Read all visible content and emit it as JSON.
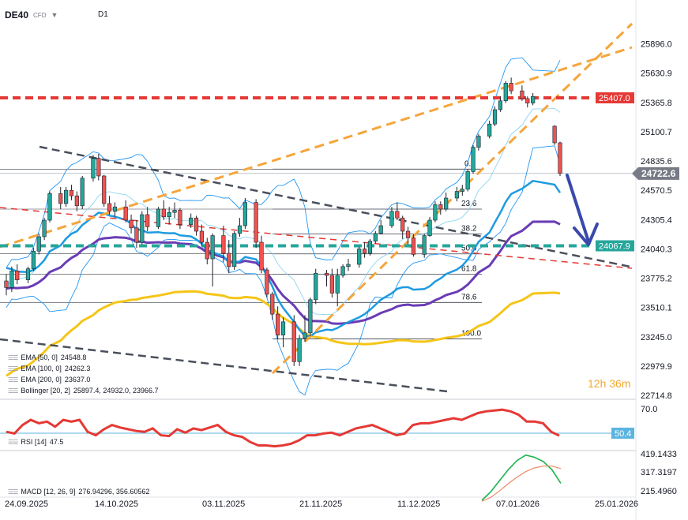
{
  "header": {
    "symbol": "DE40",
    "symbol_type": "CFD",
    "timeframe": "D1"
  },
  "colors": {
    "up": "#26a69a",
    "down": "#ef5350",
    "resistance": "#e53935",
    "support": "#26a69a",
    "ema50": "#1e9be0",
    "ema100": "#6a3cb5",
    "ema200": "#f5c518",
    "bollinger": "#2196f3",
    "orange_lines": "#f5a53b",
    "gray_dashed": "#4a4f5c",
    "forecast_arrow": "#3949ab",
    "rsi": "#e53935",
    "macd": "#1bb34a",
    "macd_signal": "#f08a6b"
  },
  "icons": [
    "chevron-down-icon",
    "indicator-settings-icon",
    "forecast-arrow-icon"
  ],
  "countdown": "12h 36m",
  "indicators": [
    {
      "name": "EMA [50, 0]",
      "value": "24548.8"
    },
    {
      "name": "EMA [100, 0]",
      "value": "24262.3"
    },
    {
      "name": "EMA [200, 0]",
      "value": "23637.0"
    },
    {
      "name": "Bollinger [20, 2]",
      "value": "25897.4, 24932.0, 23966.7"
    }
  ],
  "rsi_legend": {
    "name": "RSI [14]",
    "value": "47.5"
  },
  "macd_legend": {
    "name": "MACD [12, 26, 9]",
    "value": "276.94296, 356.60562"
  },
  "chart_data": [
    {
      "type": "candlestick",
      "title": "DE40",
      "x_dates": [
        "24.09.2025",
        "14.10.2025",
        "03.11.2025",
        "21.11.2025",
        "11.12.2025",
        "07.01.2026",
        "25.01.2026"
      ],
      "y_ticks": [
        "25896.0",
        "25630.9",
        "25365.8",
        "25100.7",
        "24835.6",
        "24570.5",
        "24305.4",
        "24040.3",
        "23775.2",
        "23510.1",
        "23245.0",
        "22979.9",
        "22714.8"
      ],
      "ylim": [
        22714.8,
        26100
      ],
      "price_tags": [
        {
          "label": "25407.0",
          "value": 25407.0,
          "role": "resistance"
        },
        {
          "label": "24722.6",
          "value": 24722.6,
          "role": "last"
        },
        {
          "label": "24067.9",
          "value": 24067.9,
          "role": "support"
        }
      ],
      "fibonacci": [
        {
          "level": "0.0",
          "value": 24762
        },
        {
          "level": "23.6",
          "value": 24400
        },
        {
          "level": "38.2",
          "value": 24175
        },
        {
          "level": "50.0",
          "value": 23995
        },
        {
          "level": "61.8",
          "value": 23812
        },
        {
          "level": "78.6",
          "value": 23555
        },
        {
          "level": "100.0",
          "value": 23225
        }
      ],
      "candles": [
        [
          23750,
          23810,
          23620,
          23690
        ],
        [
          23690,
          23880,
          23650,
          23840
        ],
        [
          23840,
          23900,
          23720,
          23760
        ],
        [
          23760,
          23880,
          23730,
          23860
        ],
        [
          23860,
          24050,
          23840,
          24020
        ],
        [
          24020,
          24180,
          23990,
          24150
        ],
        [
          24150,
          24320,
          24120,
          24300
        ],
        [
          24300,
          24560,
          24280,
          24540
        ],
        [
          24540,
          24600,
          24400,
          24450
        ],
        [
          24450,
          24600,
          24420,
          24570
        ],
        [
          24570,
          24620,
          24480,
          24520
        ],
        [
          24520,
          24560,
          24380,
          24430
        ],
        [
          24430,
          24700,
          24400,
          24680
        ],
        [
          24680,
          24890,
          24650,
          24860
        ],
        [
          24860,
          24900,
          24660,
          24700
        ],
        [
          24700,
          24710,
          24420,
          24450
        ],
        [
          24450,
          24520,
          24350,
          24380
        ],
        [
          24380,
          24460,
          24330,
          24420
        ],
        [
          24420,
          24480,
          24280,
          24300
        ],
        [
          24300,
          24350,
          24180,
          24230
        ],
        [
          24230,
          24300,
          24050,
          24100
        ],
        [
          24100,
          24380,
          24080,
          24350
        ],
        [
          24350,
          24420,
          24200,
          24240
        ],
        [
          24240,
          24420,
          24220,
          24400
        ],
        [
          24400,
          24480,
          24300,
          24330
        ],
        [
          24330,
          24420,
          24260,
          24370
        ],
        [
          24370,
          24460,
          24320,
          24390
        ],
        [
          24390,
          24410,
          24220,
          24260
        ],
        [
          24260,
          24360,
          24230,
          24320
        ],
        [
          24320,
          24340,
          24160,
          24200
        ],
        [
          24200,
          24260,
          24060,
          24100
        ],
        [
          24100,
          24140,
          23900,
          23950
        ],
        [
          23950,
          24180,
          23700,
          24160
        ],
        [
          24160,
          24250,
          23920,
          24000
        ],
        [
          24000,
          24120,
          23820,
          23880
        ],
        [
          23880,
          24200,
          23850,
          24180
        ],
        [
          24180,
          24320,
          24150,
          24250
        ],
        [
          24250,
          24500,
          24220,
          24460
        ],
        [
          24460,
          24490,
          24050,
          24100
        ],
        [
          24100,
          24160,
          23820,
          23850
        ],
        [
          23850,
          23870,
          23600,
          23630
        ],
        [
          23630,
          23650,
          23400,
          23450
        ],
        [
          23450,
          23520,
          23220,
          23260
        ],
        [
          23260,
          23420,
          23150,
          23380
        ],
        [
          23380,
          23440,
          22980,
          23020
        ],
        [
          23020,
          23260,
          22980,
          23230
        ],
        [
          23230,
          23440,
          23200,
          23280
        ],
        [
          23280,
          23600,
          23250,
          23580
        ],
        [
          23580,
          23860,
          23540,
          23820
        ],
        [
          23820,
          23850,
          23700,
          23800
        ],
        [
          23800,
          23860,
          23600,
          23640
        ],
        [
          23640,
          23860,
          23520,
          23800
        ],
        [
          23800,
          23900,
          23780,
          23880
        ],
        [
          23880,
          23950,
          23840,
          23900
        ],
        [
          23900,
          24060,
          23870,
          24040
        ],
        [
          24040,
          24100,
          23960,
          24000
        ],
        [
          24000,
          24130,
          23980,
          24110
        ],
        [
          24110,
          24200,
          24090,
          24180
        ],
        [
          24180,
          24300,
          24170,
          24250
        ],
        [
          24250,
          24420,
          24230,
          24380
        ],
        [
          24380,
          24460,
          24300,
          24320
        ],
        [
          24320,
          24340,
          24130,
          24200
        ],
        [
          24200,
          24240,
          24080,
          24140
        ],
        [
          24140,
          24170,
          23970,
          23990
        ],
        [
          23990,
          24180,
          23960,
          24160
        ],
        [
          24160,
          24330,
          24150,
          24300
        ],
        [
          24300,
          24470,
          24280,
          24440
        ],
        [
          24440,
          24470,
          24350,
          24400
        ],
        [
          24400,
          24550,
          24380,
          24500
        ],
        [
          24500,
          24600,
          24470,
          24560
        ],
        [
          24560,
          24620,
          24520,
          24580
        ],
        [
          24580,
          24760,
          24560,
          24740
        ],
        [
          24740,
          24980,
          24720,
          24960
        ],
        [
          24960,
          25080,
          24930,
          25060
        ],
        [
          25060,
          25200,
          25040,
          25170
        ],
        [
          25170,
          25330,
          25150,
          25300
        ],
        [
          25300,
          25420,
          25280,
          25380
        ],
        [
          25380,
          25560,
          25360,
          25540
        ],
        [
          25540,
          25590,
          25440,
          25470
        ],
        [
          25470,
          25520,
          25380,
          25400
        ],
        [
          25400,
          25420,
          25320,
          25360
        ],
        [
          25360,
          25450,
          25340,
          25420
        ],
        [
          25150,
          25160,
          24980,
          25000
        ],
        [
          25000,
          25010,
          24700,
          24722.6
        ]
      ],
      "series": [
        {
          "name": "EMA [50, 0]",
          "last": 24548.8,
          "start": 23900
        },
        {
          "name": "EMA [100, 0]",
          "last": 24262.3,
          "start": 23680
        },
        {
          "name": "EMA [200, 0]",
          "last": 23637.0,
          "start": 22850
        }
      ]
    },
    {
      "type": "line",
      "title": "RSI [14]",
      "level": "50.4",
      "y_ticks": [
        "70.0"
      ],
      "values": [
        52,
        50,
        60,
        66,
        62,
        64,
        58,
        66,
        64,
        66,
        52,
        48,
        55,
        60,
        57,
        55,
        53,
        52,
        56,
        48,
        47,
        55,
        51,
        56,
        54,
        57,
        60,
        52,
        48,
        46,
        40,
        36,
        36,
        35,
        36,
        38,
        42,
        48,
        48,
        50,
        51,
        48,
        52,
        56,
        58,
        60,
        56,
        52,
        48,
        50,
        60,
        62,
        62,
        64,
        66,
        68,
        66,
        70,
        74,
        76,
        77,
        78,
        76,
        72,
        64,
        64,
        62,
        52,
        47.5
      ]
    },
    {
      "type": "line",
      "title": "MACD [12, 26, 9]",
      "y_ticks": [
        "419.1433",
        "317.3197",
        "215.4960"
      ],
      "series": [
        {
          "name": "MACD",
          "values": [
            185,
            230,
            290,
            350,
            400,
            430,
            418,
            395,
            350,
            276.9
          ]
        },
        {
          "name": "Signal",
          "values": [
            180,
            200,
            235,
            275,
            310,
            340,
            360,
            370,
            370,
            356.6
          ]
        }
      ]
    }
  ]
}
